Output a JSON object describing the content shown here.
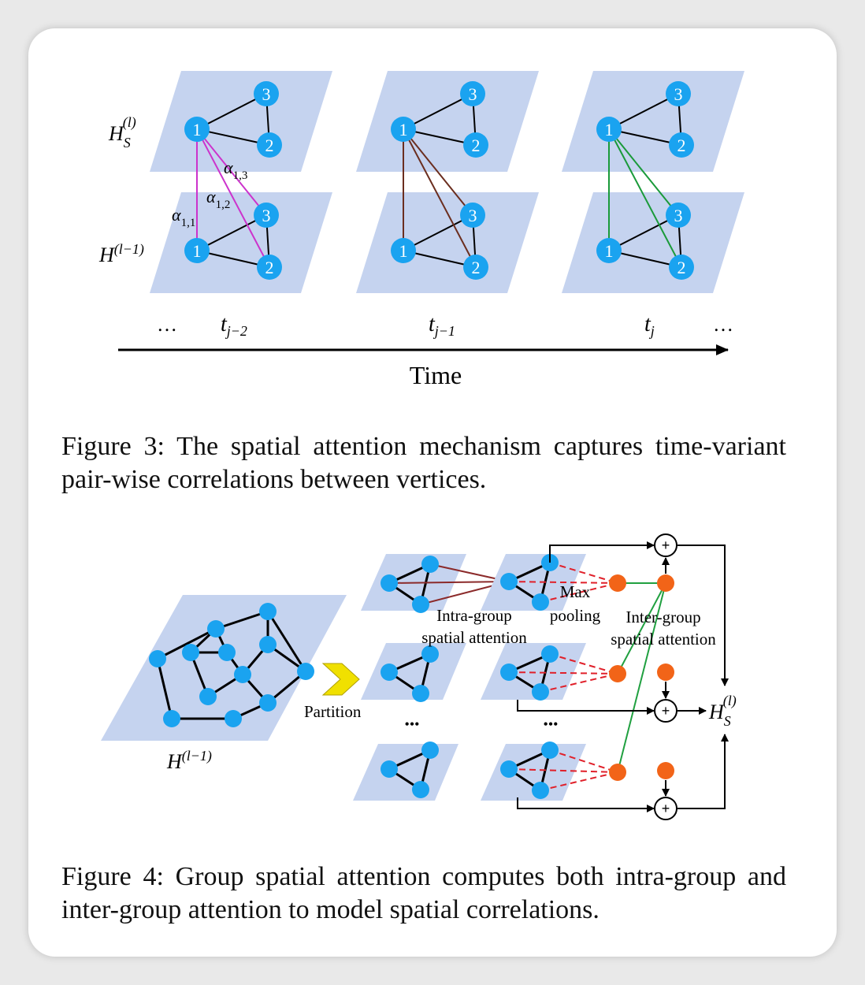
{
  "figure3": {
    "frames": [
      {
        "label_base": "t",
        "label_sub": "j−2"
      },
      {
        "label_base": "t",
        "label_sub": "j−1"
      },
      {
        "label_base": "t",
        "label_sub": "j"
      }
    ],
    "layer_top": {
      "base": "H",
      "sub": "S",
      "sup": "(l)"
    },
    "layer_bottom": {
      "base": "H",
      "sup": "(l−1)"
    },
    "alpha_labels": [
      {
        "base": "α",
        "sub": "1,1"
      },
      {
        "base": "α",
        "sub": "1,2"
      },
      {
        "base": "α",
        "sub": "1,3"
      }
    ],
    "node_labels": [
      "1",
      "2",
      "3"
    ],
    "ellipsis": "…",
    "axis_label": "Time",
    "colors": {
      "frame1": "#cc33cc",
      "frame2": "#6b2e1f",
      "frame3": "#1a9a3a",
      "node": "#1aa3f0",
      "plane": "#c5d3ef"
    },
    "caption": "Figure 3: The spatial attention mechanism captures time-variant pair-wise correlations between vertices."
  },
  "figure4": {
    "input_label": {
      "base": "H",
      "sup": "(l−1)"
    },
    "partition_label": "Partition",
    "intra_label": [
      "Intra-group",
      "spatial attention"
    ],
    "max_label": [
      "Max",
      "pooling"
    ],
    "inter_label": [
      "Inter-group",
      "spatial attention"
    ],
    "output_label": {
      "base": "H",
      "sub": "S",
      "sup": "(l)"
    },
    "dots": "•••",
    "plus": "+",
    "colors": {
      "intra": "#8b2a2a",
      "dashed": "#e0202a",
      "inter": "#20a040",
      "pool": "#f26418",
      "node": "#1aa3f0",
      "plane": "#c5d3ef",
      "arrow_fill": "#f0e000"
    },
    "caption": "Figure 4: Group spatial attention computes both intra-group and inter-group attention to model spatial correlations."
  }
}
